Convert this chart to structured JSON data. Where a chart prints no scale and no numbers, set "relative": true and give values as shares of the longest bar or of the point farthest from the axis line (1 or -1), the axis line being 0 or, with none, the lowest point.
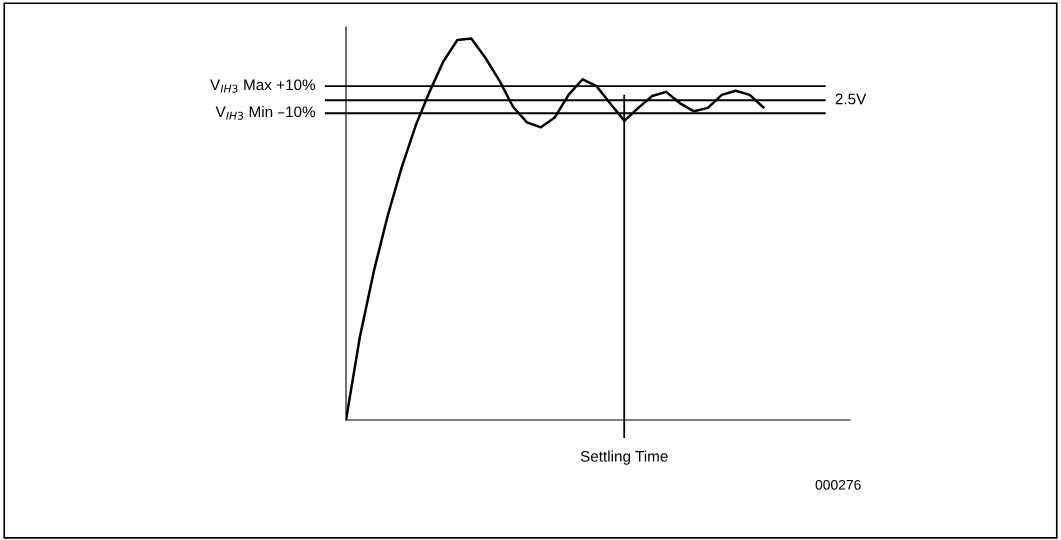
{
  "chart_data": {
    "type": "line",
    "relative": true,
    "grid": false,
    "legend": false,
    "marker": "none",
    "line_style": "solid",
    "categories": [
      null,
      null,
      null,
      null,
      null,
      null,
      null,
      null,
      null,
      null,
      null,
      null,
      null,
      null,
      null,
      null,
      null,
      null,
      null,
      null,
      null,
      null,
      null,
      null,
      null,
      null,
      null,
      null,
      null,
      null,
      null
    ],
    "series": [
      {
        "color": "#000000",
        "values": [
          0.0,
          0.218,
          0.39,
          0.536,
          0.662,
          0.771,
          0.86,
          0.94,
          0.996,
          1.0,
          0.95,
          0.891,
          0.821,
          0.78,
          0.767,
          0.793,
          0.853,
          0.893,
          0.875,
          0.829,
          0.784,
          0.818,
          0.849,
          0.86,
          0.83,
          0.809,
          0.818,
          0.852,
          0.863,
          0.852,
          0.819
        ]
      }
    ],
    "ref_lines": [
      {
        "axis": "y",
        "value": 0.875,
        "label": "V$_{IH3}$ Max +10%",
        "color": "#000000"
      },
      {
        "axis": "y",
        "value": 0.838,
        "label": "2.5V",
        "color": "#000000"
      },
      {
        "axis": "y",
        "value": 0.804,
        "label": "V$_{IH3}$ Min –10%",
        "color": "#000000"
      },
      {
        "axis": "x",
        "label": "Settling Time",
        "color": "#000000"
      }
    ],
    "annotations": [
      "000276"
    ]
  }
}
